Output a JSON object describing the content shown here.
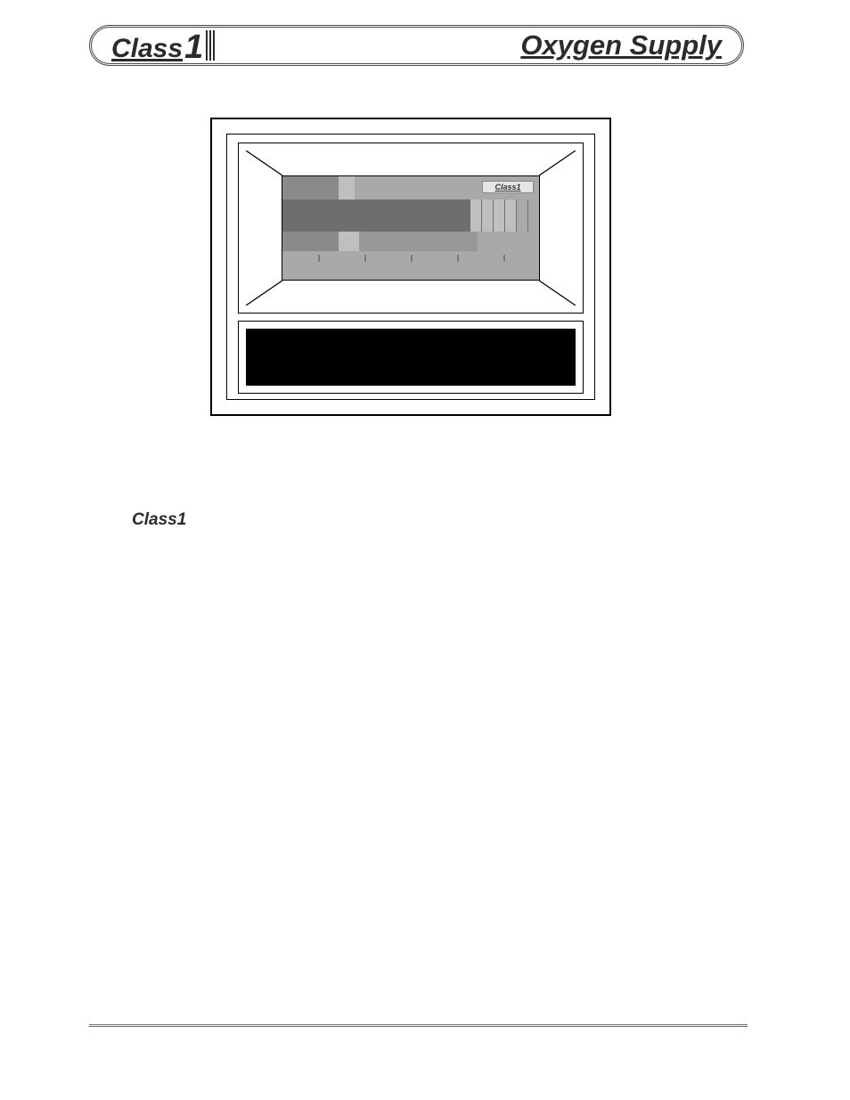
{
  "header": {
    "brand_word": "Class",
    "brand_one": "1",
    "title": "Oxygen Supply",
    "lozenge_border_color": "#4a4a4a"
  },
  "diagram": {
    "outer_border": "#000000",
    "background": "#ffffff",
    "gauge": {
      "window_bg": "#a9a9a9",
      "mini_brand": "Class1",
      "top_strip": {
        "segments": [
          {
            "width_pct": 22,
            "color": "#8a8a8a"
          },
          {
            "width_pct": 6,
            "color": "#bfbfbf"
          },
          {
            "width_pct": 52,
            "color": "#a9a9a9"
          },
          {
            "width_pct": 20,
            "color": "#a9a9a9"
          }
        ]
      },
      "bars": {
        "count": 22,
        "zones": [
          {
            "from": 0,
            "to": 16,
            "color": "#6e6e6e"
          },
          {
            "from": 16,
            "to": 20,
            "color": "#bfbfbf"
          },
          {
            "from": 20,
            "to": 22,
            "color": "#a9a9a9"
          }
        ],
        "separator_color": "#6e6e6e"
      },
      "bottom_strip": {
        "segments": [
          {
            "width_pct": 22,
            "color": "#8a8a8a"
          },
          {
            "width_pct": 8,
            "color": "#bfbfbf"
          },
          {
            "width_pct": 46,
            "color": "#989898"
          },
          {
            "width_pct": 24,
            "color": "#a9a9a9"
          }
        ]
      },
      "ticks_pct": [
        14,
        32,
        50,
        68,
        86
      ],
      "tick_color": "#7a7a7a"
    },
    "placard_bg": "#000000"
  },
  "body": {
    "brand_text": "Class1"
  },
  "footer": {
    "rule_color": "#6a6a6a"
  }
}
